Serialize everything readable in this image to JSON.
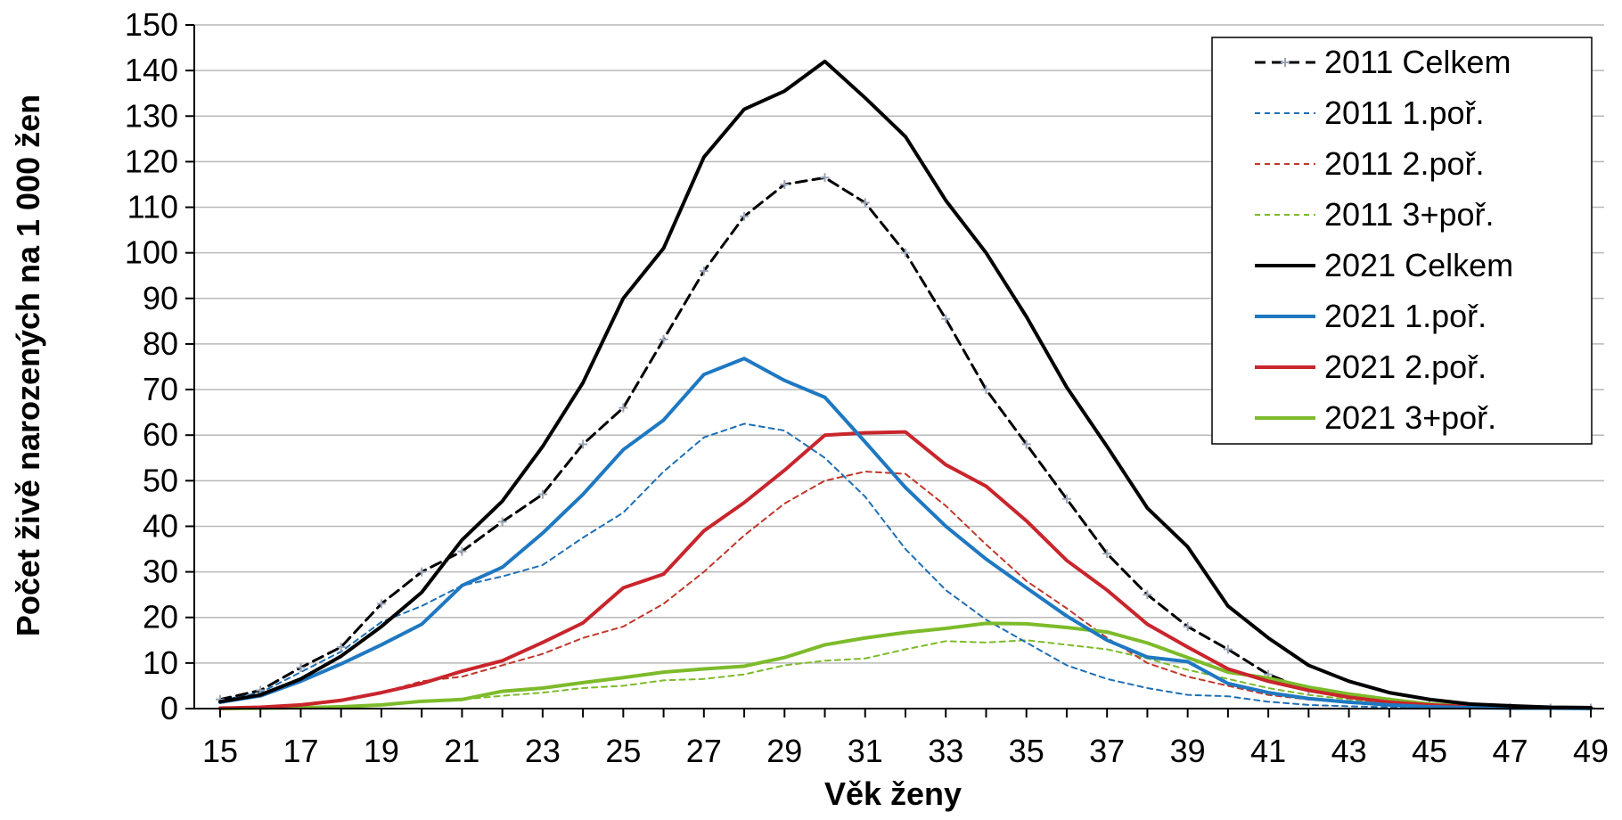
{
  "chart_data": {
    "type": "line",
    "xlabel": "Věk ženy",
    "ylabel": "Počet živě narozených na 1 000 žen",
    "xlim": [
      15,
      49
    ],
    "ylim": [
      0,
      150
    ],
    "x_ticks": [
      "15",
      "17",
      "19",
      "21",
      "23",
      "25",
      "27",
      "29",
      "31",
      "33",
      "35",
      "37",
      "39",
      "41",
      "43",
      "45",
      "47",
      "49"
    ],
    "y_ticks": [
      "0",
      "10",
      "20",
      "30",
      "40",
      "50",
      "60",
      "70",
      "80",
      "90",
      "100",
      "110",
      "120",
      "130",
      "140",
      "150"
    ],
    "grid": "horizontal",
    "legend_position": "top-right",
    "x": [
      15,
      16,
      17,
      18,
      19,
      20,
      21,
      22,
      23,
      24,
      25,
      26,
      27,
      28,
      29,
      30,
      31,
      32,
      33,
      34,
      35,
      36,
      37,
      38,
      39,
      40,
      41,
      42,
      43,
      44,
      45,
      46,
      47,
      48,
      49
    ],
    "series": [
      {
        "name": "2011 Celkem",
        "color": "#000000",
        "style": "dashed-marker",
        "width": 3,
        "values": [
          2,
          4,
          9,
          13.5,
          23,
          30,
          34.5,
          41,
          47,
          58,
          66,
          81,
          96,
          108,
          115,
          116.5,
          111,
          100,
          85.5,
          70,
          58,
          46,
          34,
          25,
          18,
          13,
          7.5,
          4,
          2.5,
          1.5,
          0.8,
          0.4,
          0.2,
          0.1,
          0.1
        ]
      },
      {
        "name": "2011 1.poř.",
        "color": "#1f6fb5",
        "style": "thin-dashed",
        "width": 2,
        "values": [
          1.8,
          3.5,
          8,
          12.5,
          19,
          22.5,
          27,
          29,
          31.5,
          37.5,
          43,
          52,
          59.5,
          62.5,
          61,
          55,
          46.5,
          35,
          26,
          19.5,
          14.5,
          9.5,
          6.5,
          4.5,
          3,
          2.7,
          1.5,
          0.8,
          0.5,
          0.3,
          0.2,
          0.1,
          0.1,
          0.1,
          0
        ]
      },
      {
        "name": "2011 2.poř.",
        "color": "#c0392b",
        "style": "thin-dashed",
        "width": 2,
        "values": [
          0.1,
          0.3,
          0.8,
          2,
          3.5,
          6,
          7,
          9.5,
          12,
          15.5,
          18,
          23,
          30,
          38,
          45,
          50,
          52,
          51.5,
          44.5,
          36,
          28,
          22,
          15.5,
          10,
          7,
          5,
          3,
          2,
          1.5,
          0.8,
          0.5,
          0.3,
          0.2,
          0.1,
          0.1
        ]
      },
      {
        "name": "2011 3+poř.",
        "color": "#7dbb2a",
        "style": "thin-dashed",
        "width": 2,
        "values": [
          0,
          0.1,
          0.2,
          0.4,
          0.8,
          1.5,
          2,
          2.8,
          3.5,
          4.5,
          5,
          6.2,
          6.5,
          7.5,
          9.5,
          10.5,
          11,
          13,
          14.8,
          14.5,
          15,
          14,
          13,
          11,
          8.5,
          6.5,
          4.5,
          3,
          2,
          1.2,
          0.8,
          0.4,
          0.2,
          0.1,
          0.1
        ]
      },
      {
        "name": "2021 Celkem",
        "color": "#000000",
        "style": "solid",
        "width": 4,
        "values": [
          1.5,
          3,
          6.5,
          11.5,
          18,
          25.5,
          37,
          45.5,
          57.5,
          71.5,
          90,
          101,
          121,
          131.5,
          135.5,
          142,
          134,
          125.5,
          111.5,
          100,
          86,
          70.5,
          57.5,
          44,
          35.5,
          22.5,
          15.5,
          9.5,
          6,
          3.5,
          2,
          1,
          0.6,
          0.3,
          0.2
        ]
      },
      {
        "name": "2021 1.poř.",
        "color": "#1f78c1",
        "style": "solid",
        "width": 4,
        "values": [
          1.4,
          2.8,
          6,
          9.8,
          14,
          18.5,
          27,
          31,
          38.5,
          47,
          56.8,
          63.3,
          73.3,
          76.8,
          72,
          68.3,
          58.5,
          48.5,
          40,
          32.8,
          26.5,
          20.3,
          15,
          11.3,
          10.3,
          5.5,
          3.5,
          2.2,
          1.4,
          0.8,
          0.4,
          0.2,
          0.1,
          0.1,
          0
        ]
      },
      {
        "name": "2021 2.poř.",
        "color": "#c9252c",
        "style": "solid",
        "width": 4,
        "values": [
          0.1,
          0.3,
          0.8,
          1.8,
          3.5,
          5.5,
          8.2,
          10.5,
          14.5,
          18.8,
          26.5,
          29.5,
          39,
          45.2,
          52.3,
          60,
          60.5,
          60.7,
          53.5,
          48.8,
          41.2,
          32.5,
          26,
          18.5,
          13.5,
          8.7,
          6,
          4,
          2.5,
          1.4,
          0.8,
          0.4,
          0.2,
          0.1,
          0.1
        ]
      },
      {
        "name": "2021 3+poř.",
        "color": "#7dbb2a",
        "style": "solid",
        "width": 4,
        "values": [
          0,
          0.1,
          0.2,
          0.4,
          0.8,
          1.6,
          2,
          3.8,
          4.5,
          5.7,
          6.8,
          8,
          8.7,
          9.3,
          11.2,
          14,
          15.5,
          16.7,
          17.6,
          18.7,
          18.6,
          17.8,
          16.8,
          14.4,
          11.2,
          8,
          6.7,
          4.7,
          3.2,
          2,
          1,
          0.5,
          0.3,
          0.2,
          0.1
        ]
      }
    ]
  }
}
